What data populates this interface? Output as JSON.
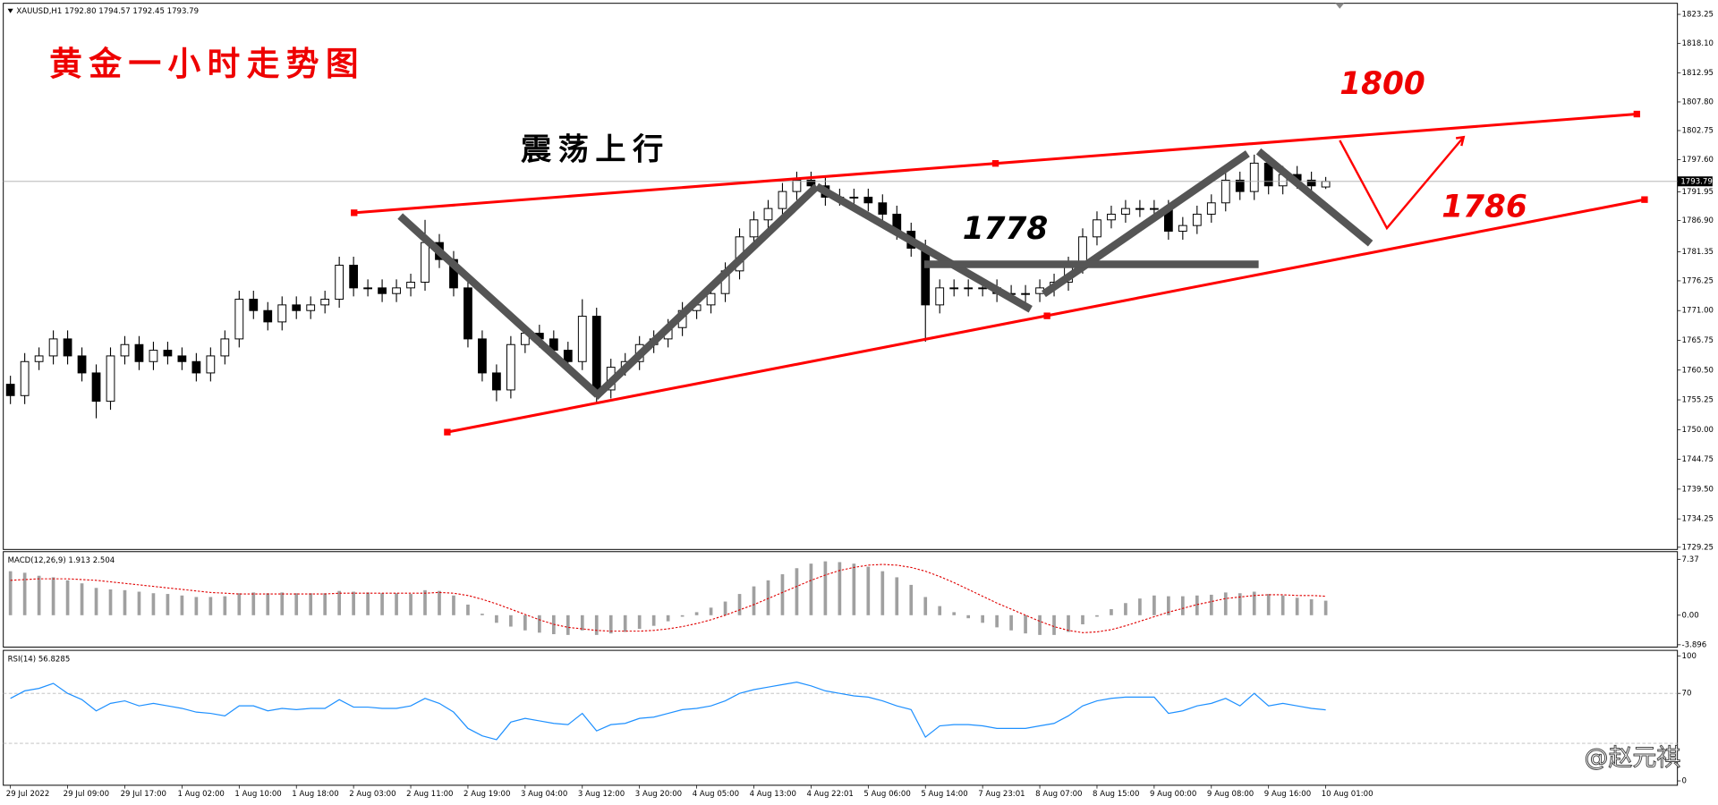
{
  "chart_data": [
    {
      "type": "candlestick",
      "title": "XAUUSD,H1  1792.80 1794.57 1792.45 1793.79",
      "xlim": [
        -0.5,
        116.6
      ],
      "xticks": [
        {
          "value": 0,
          "label": "29 Jul 2022"
        },
        {
          "value": 4,
          "label": "29 Jul 09:00"
        },
        {
          "value": 8,
          "label": "29 Jul 17:00"
        },
        {
          "value": 12,
          "label": "1 Aug 02:00"
        },
        {
          "value": 16,
          "label": "1 Aug 10:00"
        },
        {
          "value": 20,
          "label": "1 Aug 18:00"
        },
        {
          "value": 24,
          "label": "2 Aug 03:00"
        },
        {
          "value": 28,
          "label": "2 Aug 11:00"
        },
        {
          "value": 32,
          "label": "2 Aug 19:00"
        },
        {
          "value": 36,
          "label": "3 Aug 04:00"
        },
        {
          "value": 40,
          "label": "3 Aug 12:00"
        },
        {
          "value": 44,
          "label": "3 Aug 20:00"
        },
        {
          "value": 48,
          "label": "4 Aug 05:00"
        },
        {
          "value": 52,
          "label": "4 Aug 13:00"
        },
        {
          "value": 56,
          "label": "4 Aug 22:01"
        },
        {
          "value": 60,
          "label": "5 Aug 06:00"
        },
        {
          "value": 64,
          "label": "5 Aug 14:00"
        },
        {
          "value": 68,
          "label": "7 Aug 23:01"
        },
        {
          "value": 72,
          "label": "8 Aug 07:00"
        },
        {
          "value": 76,
          "label": "8 Aug 15:00"
        },
        {
          "value": 80,
          "label": "9 Aug 00:00"
        },
        {
          "value": 84,
          "label": "9 Aug 08:00"
        },
        {
          "value": 88,
          "label": "9 Aug 16:00"
        },
        {
          "value": 92,
          "label": "10 Aug 01:00"
        }
      ],
      "ylim": [
        1728.86,
        1825.2
      ],
      "yticks": [
        1823.25,
        {
          "value": 1818.1,
          "label": "1818.10"
        },
        1812.95,
        {
          "value": 1807.8,
          "label": "1807.80"
        },
        1802.75,
        {
          "value": 1797.6,
          "label": "1797.60"
        },
        1791.95,
        {
          "value": 1786.9,
          "label": "1786.90"
        },
        1781.35,
        1776.25,
        {
          "value": 1771,
          "label": "1771.00"
        },
        1765.75,
        {
          "value": 1760.5,
          "label": "1760.50"
        },
        1755.25,
        {
          "value": 1750,
          "label": "1750.00"
        },
        1744.75,
        {
          "value": 1739.5,
          "label": "1739.50"
        },
        1734.25,
        1729.25
      ],
      "last": {
        "value": 1793.79,
        "label": "1793.79"
      },
      "open": [
        1758,
        1756,
        1762,
        1763,
        1766,
        1763,
        1760,
        1755,
        1763,
        1765,
        1762,
        1764,
        1763,
        1762,
        1760,
        1763,
        1766,
        1773,
        1771,
        1769,
        1772,
        1771,
        1772,
        1773,
        1779,
        1775,
        1775,
        1774,
        1775,
        1776,
        1783,
        1780,
        1775,
        1766,
        1760,
        1757,
        1765,
        1767,
        1766,
        1764,
        1762,
        1770,
        1757,
        1761,
        1762,
        1765,
        1766,
        1768,
        1771,
        1772,
        1774,
        1778,
        1784,
        1787,
        1789,
        1792,
        1794,
        1793,
        1791,
        1791,
        1791,
        1790,
        1788,
        1785,
        1782,
        1772,
        1775,
        1775,
        1775,
        1775,
        1774,
        1774,
        1774,
        1775,
        1776,
        1779,
        1784,
        1787,
        1788,
        1789,
        1789,
        1789,
        1785,
        1786,
        1788,
        1790,
        1794,
        1792,
        1797,
        1793,
        1795,
        1794,
        1792.8
      ],
      "high": [
        1759.5,
        1763.5,
        1764.5,
        1767.5,
        1767.5,
        1764.5,
        1761.5,
        1764.5,
        1766.5,
        1766.5,
        1765.5,
        1765.5,
        1764.5,
        1763.5,
        1764.5,
        1767.5,
        1774.5,
        1774.5,
        1772.5,
        1773.5,
        1773.5,
        1773.5,
        1774.5,
        1780.5,
        1780.5,
        1776.5,
        1776.5,
        1776.5,
        1777.5,
        1787,
        1784.5,
        1781.5,
        1776.5,
        1767.5,
        1761.5,
        1766.5,
        1768.5,
        1768.5,
        1767.5,
        1765.5,
        1773,
        1771.5,
        1762.5,
        1763.5,
        1766.5,
        1767.5,
        1769.5,
        1772.5,
        1773.5,
        1775.5,
        1779.5,
        1785.5,
        1788.5,
        1790.5,
        1793.5,
        1795.5,
        1795.5,
        1794.5,
        1792.5,
        1792.5,
        1792.5,
        1791.5,
        1789.5,
        1786.5,
        1783.5,
        1776.5,
        1776.5,
        1776.5,
        1776.5,
        1776.5,
        1775.5,
        1775.5,
        1776.5,
        1777.5,
        1780.5,
        1785.5,
        1788.5,
        1789.5,
        1790.5,
        1790.5,
        1790.5,
        1790.5,
        1787.5,
        1789.5,
        1791.5,
        1795.5,
        1795.5,
        1798.5,
        1798.5,
        1796.5,
        1796.5,
        1795.5,
        1794.57
      ],
      "low": [
        1754.5,
        1754.5,
        1760.5,
        1761.5,
        1761.5,
        1758.5,
        1752,
        1753.5,
        1761.5,
        1760.5,
        1760.5,
        1761.5,
        1760.5,
        1758.5,
        1758.5,
        1761.5,
        1764.5,
        1769.5,
        1767.5,
        1767.5,
        1769.5,
        1769.5,
        1770.5,
        1771.5,
        1773.5,
        1773.5,
        1772.5,
        1772.5,
        1773.5,
        1774.5,
        1778.5,
        1773.5,
        1764.5,
        1758.5,
        1755,
        1755.5,
        1763.5,
        1764.5,
        1762.5,
        1760.5,
        1760.5,
        1754.5,
        1755.5,
        1759.5,
        1760.5,
        1763.5,
        1764.5,
        1766.5,
        1769.5,
        1770.5,
        1772.5,
        1776.5,
        1782.5,
        1785.5,
        1787.5,
        1790.5,
        1791.5,
        1789.5,
        1789.5,
        1789.5,
        1788.5,
        1786.5,
        1783.5,
        1780.5,
        1765.5,
        1770.5,
        1773.5,
        1773.5,
        1773.5,
        1772.5,
        1772.5,
        1772.5,
        1772.5,
        1773.5,
        1774.5,
        1777.5,
        1782.5,
        1785.5,
        1786.5,
        1787.5,
        1787.5,
        1783.5,
        1783.5,
        1784.5,
        1786.5,
        1788.5,
        1790.5,
        1790.5,
        1791.5,
        1791.5,
        1792.5,
        1791.5,
        1792.45
      ],
      "close": [
        1756,
        1762,
        1763,
        1766,
        1763,
        1760,
        1755,
        1763,
        1765,
        1762,
        1764,
        1763,
        1762,
        1760,
        1763,
        1766,
        1773,
        1771,
        1769,
        1772,
        1771,
        1772,
        1773,
        1779,
        1775,
        1775,
        1774,
        1775,
        1776,
        1783,
        1780,
        1775,
        1766,
        1760,
        1757,
        1765,
        1767,
        1766,
        1764,
        1762,
        1770,
        1757,
        1761,
        1762,
        1765,
        1766,
        1768,
        1771,
        1772,
        1774,
        1778,
        1784,
        1787,
        1789,
        1792,
        1794,
        1793,
        1791,
        1791,
        1791,
        1790,
        1788,
        1785,
        1782,
        1772,
        1775,
        1775,
        1775,
        1775,
        1774,
        1774,
        1774,
        1775,
        1776,
        1779,
        1784,
        1787,
        1788,
        1789,
        1789,
        1789,
        1785,
        1786,
        1788,
        1790,
        1794,
        1792,
        1797,
        1793,
        1795,
        1794,
        1793,
        1793.79
      ]
    },
    {
      "type": "macd",
      "label": "MACD(12,26,9) 1.913 2.504",
      "color": "#a0a0a0",
      "signal_color": "#e00000",
      "ylim": [
        -4.2,
        8.38
      ],
      "yticks": [
        7.37,
        {
          "value": 0,
          "label": "0.00"
        },
        -3.896
      ],
      "histogram": [
        5.8,
        5.6,
        5.2,
        5.0,
        4.6,
        4.2,
        3.6,
        3.4,
        3.3,
        3.1,
        2.9,
        2.8,
        2.6,
        2.4,
        2.4,
        2.5,
        2.9,
        3.0,
        2.9,
        3.0,
        2.9,
        2.9,
        2.9,
        3.2,
        3.1,
        3.0,
        2.9,
        2.9,
        2.8,
        3.3,
        3.2,
        2.6,
        1.4,
        0.2,
        -1.0,
        -1.5,
        -2.0,
        -2.3,
        -2.5,
        -2.6,
        -2.0,
        -2.6,
        -2.4,
        -2.2,
        -1.8,
        -1.4,
        -0.8,
        -0.2,
        0.4,
        1.0,
        1.8,
        2.8,
        3.8,
        4.6,
        5.4,
        6.2,
        6.8,
        7.1,
        7.0,
        6.8,
        6.4,
        5.8,
        5.0,
        4.0,
        2.4,
        1.2,
        0.4,
        -0.4,
        -1.0,
        -1.6,
        -2.0,
        -2.4,
        -2.6,
        -2.6,
        -2.2,
        -1.2,
        -0.2,
        0.8,
        1.6,
        2.2,
        2.6,
        2.5,
        2.5,
        2.6,
        2.7,
        3.0,
        2.9,
        3.1,
        2.8,
        2.6,
        2.3,
        2.1,
        1.913
      ],
      "signal": [
        4.6,
        4.7,
        4.8,
        4.8,
        4.8,
        4.7,
        4.6,
        4.4,
        4.2,
        4.0,
        3.8,
        3.6,
        3.4,
        3.2,
        3.0,
        2.9,
        2.8,
        2.8,
        2.8,
        2.8,
        2.8,
        2.8,
        2.8,
        2.9,
        2.9,
        2.9,
        2.9,
        2.9,
        2.9,
        2.9,
        3.0,
        2.9,
        2.6,
        2.1,
        1.5,
        0.8,
        0.1,
        -0.6,
        -1.2,
        -1.6,
        -1.8,
        -2.0,
        -2.1,
        -2.1,
        -2.1,
        -2.0,
        -1.8,
        -1.5,
        -1.1,
        -0.6,
        0.0,
        0.7,
        1.4,
        2.2,
        3.0,
        3.8,
        4.6,
        5.3,
        5.9,
        6.3,
        6.6,
        6.7,
        6.6,
        6.3,
        5.8,
        5.1,
        4.3,
        3.4,
        2.5,
        1.6,
        0.8,
        0.0,
        -0.8,
        -1.5,
        -2.0,
        -2.3,
        -2.2,
        -1.9,
        -1.4,
        -0.8,
        -0.2,
        0.4,
        0.9,
        1.4,
        1.8,
        2.2,
        2.4,
        2.6,
        2.7,
        2.7,
        2.6,
        2.6,
        2.504
      ]
    },
    {
      "type": "line",
      "label": "RSI(14) 56.8285",
      "color": "#1e90ff",
      "ylim": [
        -3.5,
        104.4
      ],
      "yticks": [
        100,
        70,
        0
      ],
      "levels": [
        70,
        30
      ],
      "values": [
        66,
        72,
        74,
        78,
        70,
        65,
        56,
        62,
        64,
        60,
        62,
        60,
        58,
        55,
        54,
        52,
        60,
        60,
        56,
        58,
        57,
        58,
        58,
        65,
        59,
        59,
        58,
        58,
        60,
        66,
        62,
        55,
        42,
        36,
        33,
        47,
        50,
        48,
        46,
        45,
        54,
        40,
        45,
        46,
        50,
        51,
        54,
        57,
        58,
        60,
        64,
        70,
        73,
        75,
        77,
        79,
        76,
        72,
        70,
        68,
        67,
        64,
        60,
        57,
        35,
        44,
        45,
        45,
        44,
        42,
        42,
        42,
        44,
        46,
        52,
        60,
        64,
        66,
        67,
        67,
        67,
        54,
        56,
        60,
        62,
        66,
        60,
        70,
        60,
        62,
        60,
        58,
        56.8285
      ]
    }
  ],
  "annotations": {
    "title": "黄金一小时走势图",
    "trend": "震荡上行",
    "resistance": "1800",
    "support": "1786",
    "pivot": "1778",
    "watermark": "@赵元祺"
  }
}
